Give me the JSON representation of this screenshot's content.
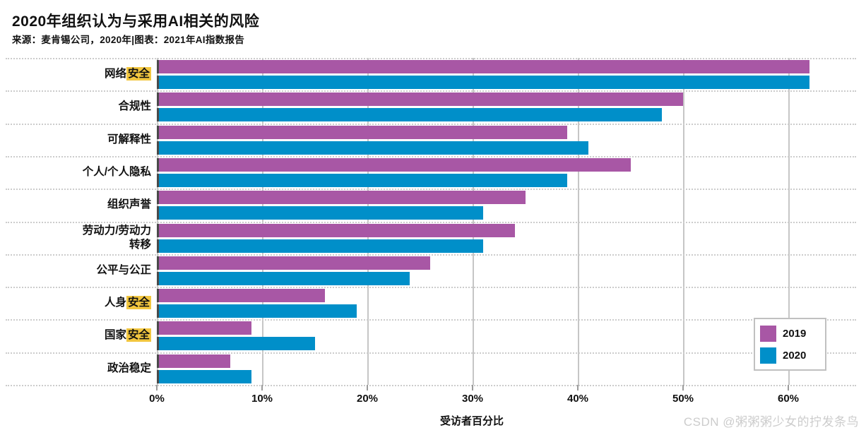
{
  "page": {
    "watermark": "CSDN @粥粥粥少女的拧发条鸟"
  },
  "chart_data": {
    "type": "bar",
    "orientation": "horizontal",
    "grouped": true,
    "title": "2020年组织认为与采用AI相关的风险",
    "source": "来源：麦肯锡公司，2020年|图表：2021年AI指数报告",
    "xlabel": "受访者百分比",
    "x_ticks_percent": [
      0,
      10,
      20,
      30,
      40,
      50,
      60
    ],
    "x_axis_max_percent": 66.4,
    "grid": true,
    "legend_position": "bottom-right",
    "highlight_color": "#f2c63f",
    "categories": [
      "网络安全",
      "合规性",
      "可解释性",
      "个人/个人隐私",
      "组织声誉",
      "劳动力/劳动力转移",
      "公平与公正",
      "人身安全",
      "国家安全",
      "政治稳定"
    ],
    "category_label_segments": [
      [
        {
          "t": "网络"
        },
        {
          "t": "安全",
          "hl": true
        }
      ],
      [
        {
          "t": "合规性"
        }
      ],
      [
        {
          "t": "可解释性"
        }
      ],
      [
        {
          "t": "个人/个人隐私"
        }
      ],
      [
        {
          "t": "组织声誉"
        }
      ],
      [
        {
          "t": "劳动力/劳动力"
        },
        {
          "br": true
        },
        {
          "t": "转移"
        }
      ],
      [
        {
          "t": "公平与公正"
        }
      ],
      [
        {
          "t": "人身"
        },
        {
          "t": "安全",
          "hl": true
        }
      ],
      [
        {
          "t": "国家"
        },
        {
          "t": "安全",
          "hl": true
        }
      ],
      [
        {
          "t": "政治稳定"
        }
      ]
    ],
    "series": [
      {
        "name": "2019",
        "color": "#a857a5",
        "values": [
          62,
          50,
          39,
          45,
          35,
          34,
          26,
          16,
          9,
          7
        ]
      },
      {
        "name": "2020",
        "color": "#008fc9",
        "values": [
          62,
          48,
          41,
          39,
          31,
          31,
          24,
          19,
          15,
          9
        ]
      }
    ]
  }
}
